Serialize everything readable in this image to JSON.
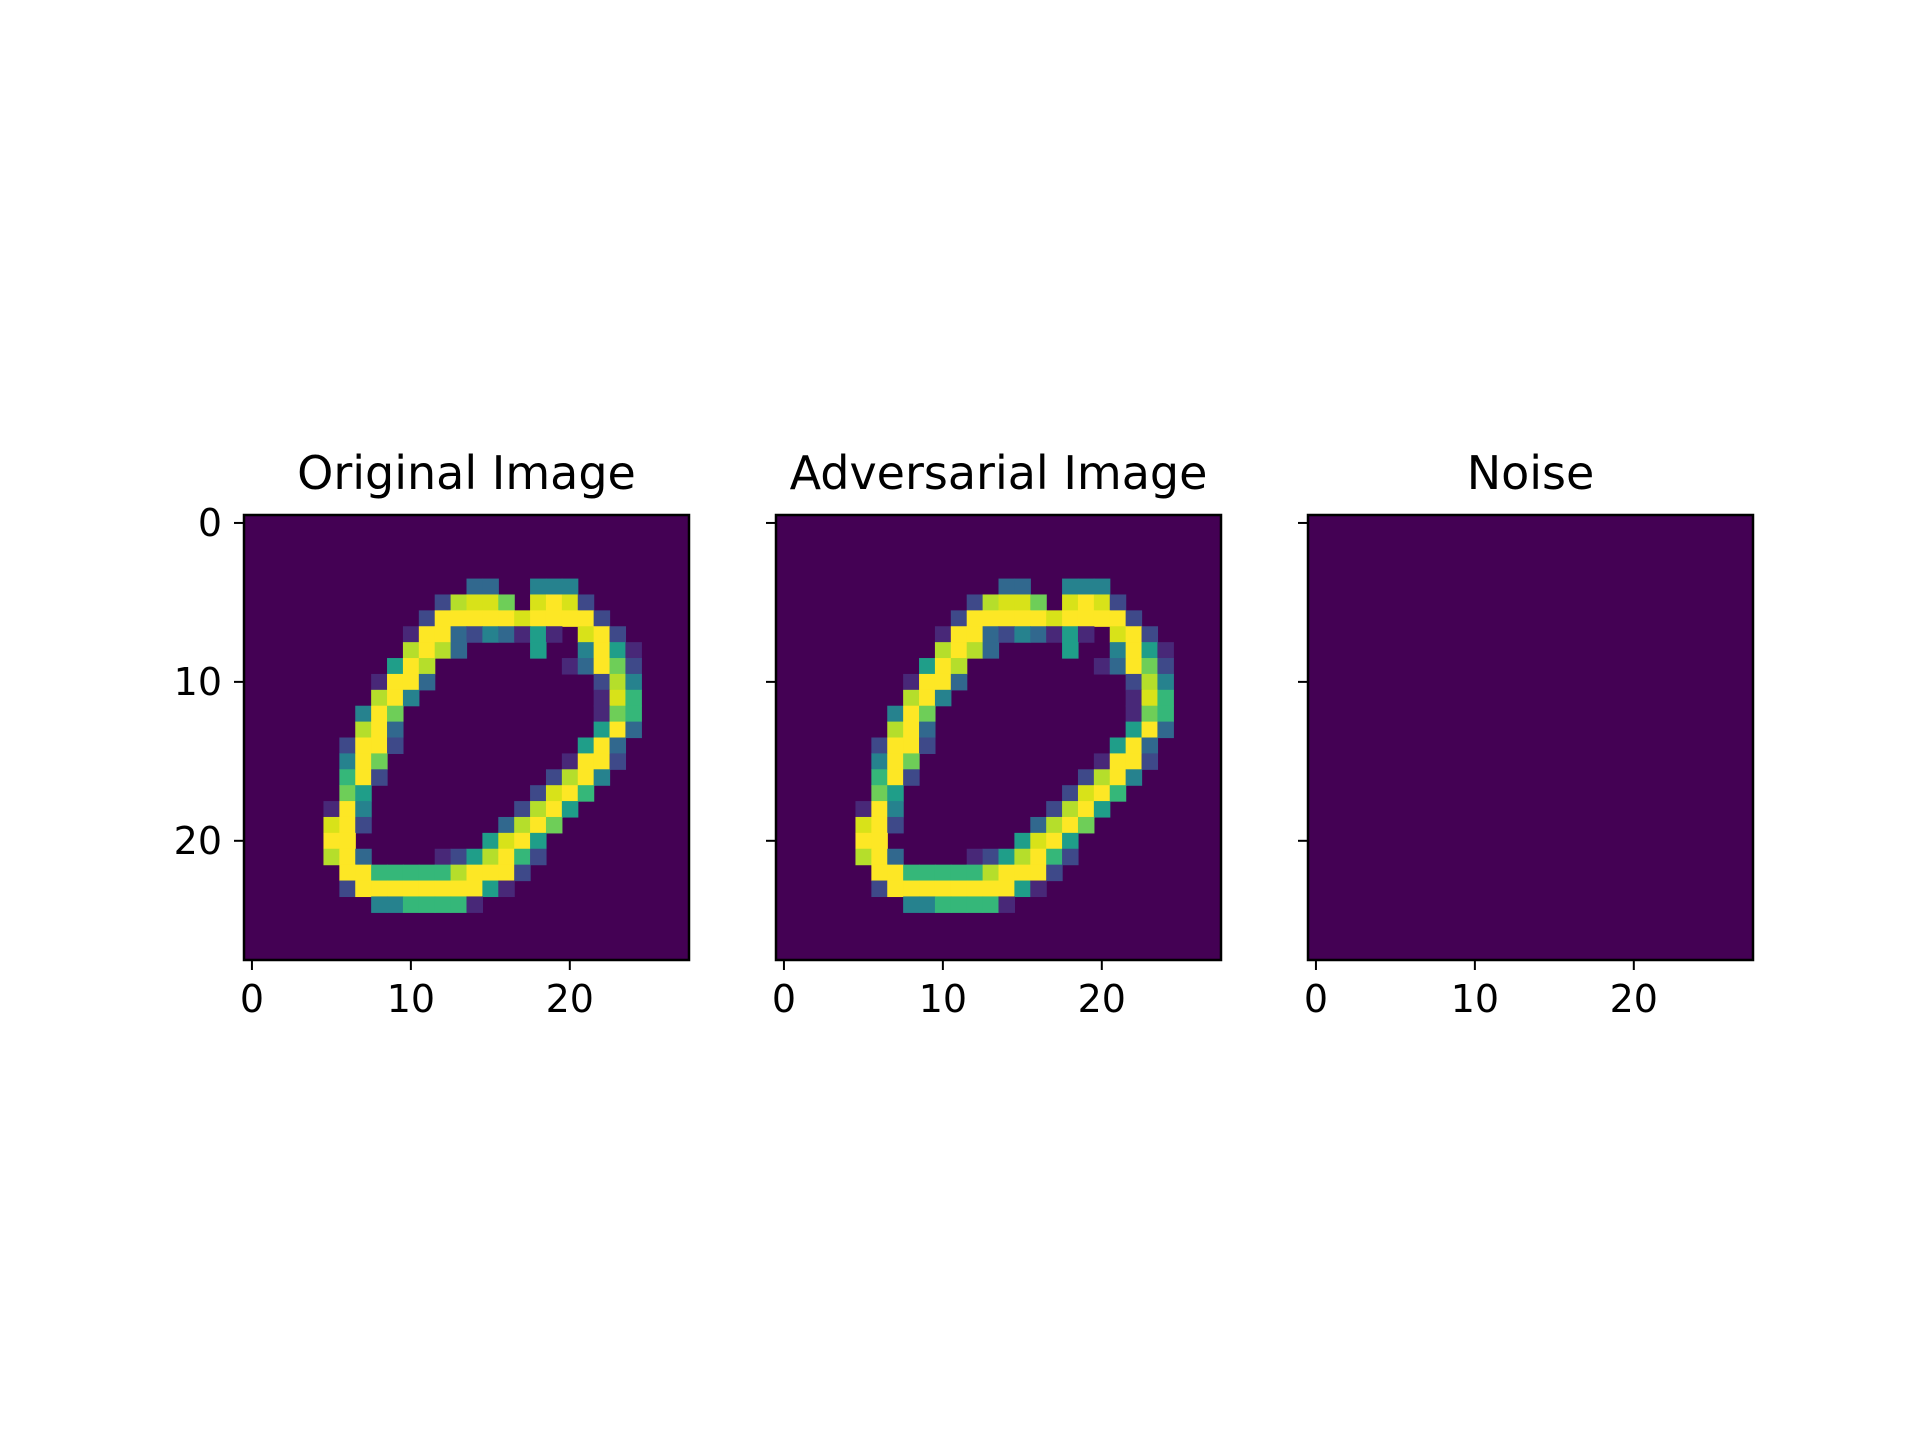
{
  "chart_data": [
    {
      "type": "heatmap",
      "title": "Original Image",
      "xlabel": "",
      "ylabel": "",
      "xlim": [
        -0.5,
        27.5
      ],
      "ylim": [
        27.5,
        -0.5
      ],
      "xticks": [
        0,
        10,
        20
      ],
      "yticks": [
        0,
        10,
        20
      ],
      "colormap": "viridis",
      "value_range": [
        0,
        1
      ],
      "grid": false,
      "rows": [
        "............................",
        "............................",
        "............................",
        "............................",
        "..............cc..ddd.......",
        "............bhiig.ijib......",
        "...........bjjjjjijjjjb.....",
        "..........ajjcbdcaea.ijb....",
        "..........hjhc....e..djea...",
        ".........ejh........acjgb...",
        "........ajjc..........bhd...",
        "........hjd...........aif...",
        ".......djg............agf...",
        ".......hjc............ejc...",
        "......bjjb...........ejc....",
        "......djg...........ajjb....",
        "......fjb..........bhjd.....",
        "......ge..........bijf......",
        ".....ajd.........bhje.......",
        ".....ijb........chjg........",
        ".....jj........eije.........",
        ".....hjc....abehjfb.........",
        "......jjfffffhjjjb..........",
        "......bjjjjjjjjea...........",
        "........ddffffa.............",
        "............................",
        "............................",
        "............................"
      ]
    },
    {
      "type": "heatmap",
      "title": "Adversarial Image",
      "xlabel": "",
      "ylabel": "",
      "xlim": [
        -0.5,
        27.5
      ],
      "ylim": [
        27.5,
        -0.5
      ],
      "xticks": [
        0,
        10,
        20
      ],
      "yticks": [
        0,
        10,
        20
      ],
      "colormap": "viridis",
      "value_range": [
        0,
        1
      ],
      "grid": false,
      "rows": [
        "............................",
        "............................",
        "............................",
        "............................",
        "..............cc..ddd.......",
        "............bhiig.ijib......",
        "...........bjjjjjijjjjb.....",
        "..........ajjcbdcaea.ijb....",
        "..........hjhc....e..djea...",
        ".........ejh........acjgb...",
        "........ajjc..........bhd...",
        "........hjd...........aif...",
        ".......djg............agf...",
        ".......hjc............ejc...",
        "......bjjb...........ejc....",
        "......djg...........ajjb....",
        "......fjb..........bhjd.....",
        "......ge..........bijf......",
        ".....ajd.........bhje.......",
        ".....ijb........chjg........",
        ".....jj........eije.........",
        ".....hjc....abehjfb.........",
        "......jjfffffhjjjb..........",
        "......bjjjjjjjjea...........",
        "........ddffffa.............",
        "............................",
        "............................",
        "............................"
      ]
    },
    {
      "type": "heatmap",
      "title": "Noise",
      "xlabel": "",
      "ylabel": "",
      "xlim": [
        -0.5,
        27.5
      ],
      "ylim": [
        27.5,
        -0.5
      ],
      "xticks": [
        0,
        10,
        20
      ],
      "yticks": [
        0,
        10,
        20
      ],
      "colormap": "viridis",
      "value_range": [
        0,
        1
      ],
      "grid": false,
      "rows": "all-zero"
    }
  ],
  "colors": {
    "viridis_scale": [
      "#440154",
      "#482878",
      "#3e4989",
      "#31688e",
      "#26828e",
      "#1f9e89",
      "#35b779",
      "#6ece58",
      "#b5de2b",
      "#d8e219",
      "#fde725"
    ]
  }
}
